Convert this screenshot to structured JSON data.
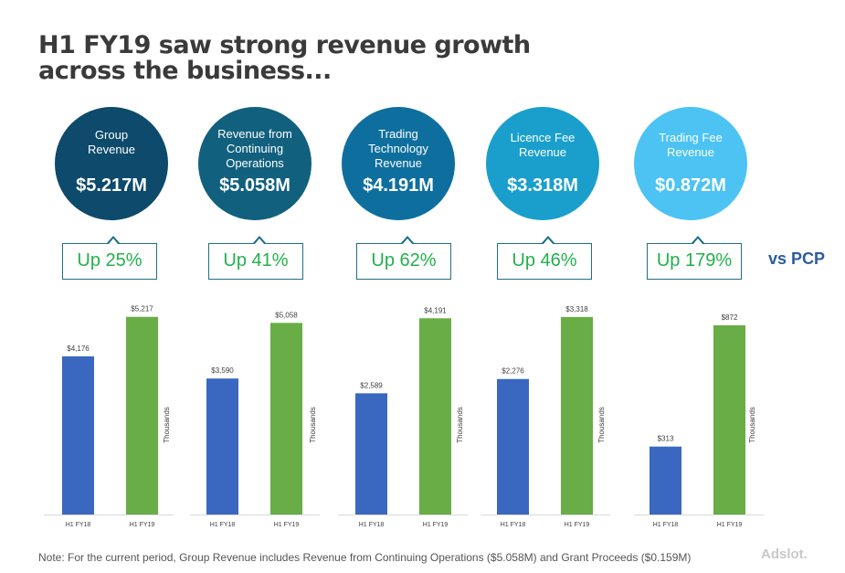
{
  "title": {
    "line1": "H1 FY19 saw strong revenue growth",
    "line2": "across the business..."
  },
  "metrics": [
    {
      "label": "Group\nRevenue",
      "value": "$5.217M",
      "growth": "Up 25%",
      "color": "#0d4a6b"
    },
    {
      "label": "Revenue from\nContinuing\nOperations",
      "value": "$5.058M",
      "growth": "Up 41%",
      "color": "#11607e"
    },
    {
      "label": "Trading\nTechnology\nRevenue",
      "value": "$4.191M",
      "growth": "Up 62%",
      "color": "#0e6f9e"
    },
    {
      "label": "Licence Fee\nRevenue",
      "value": "$3.318M",
      "growth": "Up 46%",
      "color": "#1a9fcc"
    },
    {
      "label": "Trading Fee\nRevenue",
      "value": "$0.872M",
      "growth": "Up 179%",
      "color": "#4cc3f3"
    }
  ],
  "vs_label": "vs PCP",
  "chart_data": [
    {
      "type": "bar",
      "categories": [
        "H1 FY18",
        "H1 FY19"
      ],
      "values": [
        4176,
        5217
      ],
      "labels": [
        "$4,176",
        "$5,217"
      ],
      "ylabel": "Thousands",
      "ylim": [
        0,
        5500
      ]
    },
    {
      "type": "bar",
      "categories": [
        "H1 FY18",
        "H1 FY19"
      ],
      "values": [
        3590,
        5058
      ],
      "labels": [
        "$3,590",
        "$5,058"
      ],
      "ylabel": "Thousands",
      "ylim": [
        0,
        5500
      ]
    },
    {
      "type": "bar",
      "categories": [
        "H1 FY18",
        "H1 FY19"
      ],
      "values": [
        2589,
        4191
      ],
      "labels": [
        "$2,589",
        "$4,191"
      ],
      "ylabel": "Thousands",
      "ylim": [
        0,
        4450
      ]
    },
    {
      "type": "bar",
      "categories": [
        "H1 FY18",
        "H1 FY19"
      ],
      "values": [
        2276,
        3318
      ],
      "labels": [
        "$2,276",
        "$3,318"
      ],
      "ylabel": "Thousands",
      "ylim": [
        0,
        3500
      ]
    },
    {
      "type": "bar",
      "categories": [
        "H1 FY18",
        "H1 FY19"
      ],
      "values": [
        313,
        872
      ],
      "labels": [
        "$313",
        "$872"
      ],
      "ylabel": "Thousands",
      "ylim": [
        0,
        960
      ]
    }
  ],
  "colors": {
    "fy18": "#3a68c0",
    "fy19": "#68ad45"
  },
  "footnote": "Note: For the current period, Group Revenue includes Revenue from Continuing Operations ($5.058M) and Grant Proceeds ($0.159M)",
  "logo": "Adslot."
}
